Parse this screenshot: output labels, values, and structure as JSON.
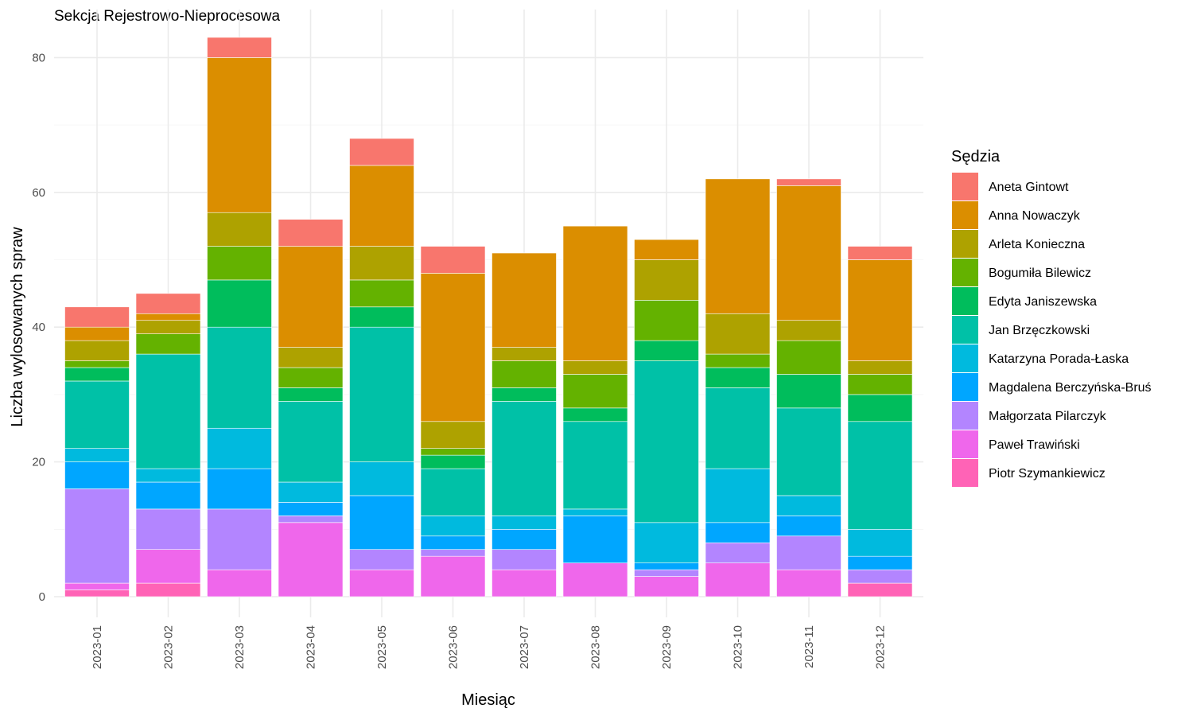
{
  "chart_data": {
    "type": "bar",
    "stacked": true,
    "title": "Sekcja Rejestrowo-Nieprocesowa",
    "xlabel": "Miesiąc",
    "ylabel": "Liczba wylosowanych spraw",
    "ylim": [
      0,
      85
    ],
    "yticks": [
      0,
      20,
      40,
      60,
      80
    ],
    "grid": true,
    "legend_title": "Sędzia",
    "legend_position": "right",
    "categories": [
      "2023-01",
      "2023-02",
      "2023-03",
      "2023-04",
      "2023-05",
      "2023-06",
      "2023-07",
      "2023-08",
      "2023-09",
      "2023-10",
      "2023-11",
      "2023-12"
    ],
    "series": [
      {
        "name": "Aneta Gintowt",
        "color": "#F8766D",
        "values": [
          3,
          3,
          3,
          4,
          4,
          4,
          0,
          0,
          0,
          0,
          1,
          2
        ]
      },
      {
        "name": "Anna Nowaczyk",
        "color": "#DB8E00",
        "values": [
          2,
          1,
          23,
          15,
          12,
          22,
          14,
          20,
          3,
          20,
          20,
          15
        ]
      },
      {
        "name": "Arleta Konieczna",
        "color": "#AEA200",
        "values": [
          3,
          2,
          5,
          3,
          5,
          4,
          2,
          2,
          6,
          6,
          3,
          2
        ]
      },
      {
        "name": "Bogumiła Bilewicz",
        "color": "#64B200",
        "values": [
          1,
          3,
          5,
          3,
          4,
          1,
          4,
          5,
          6,
          2,
          5,
          3
        ]
      },
      {
        "name": "Edyta Janiszewska",
        "color": "#00BD5C",
        "values": [
          2,
          0,
          7,
          2,
          3,
          2,
          2,
          2,
          3,
          3,
          5,
          4
        ]
      },
      {
        "name": "Jan Brzęczkowski",
        "color": "#00C1A7",
        "values": [
          10,
          17,
          15,
          12,
          20,
          7,
          17,
          13,
          24,
          12,
          13,
          16
        ]
      },
      {
        "name": "Katarzyna Porada-Łaska",
        "color": "#00BADE",
        "values": [
          2,
          2,
          6,
          3,
          5,
          3,
          2,
          1,
          6,
          8,
          3,
          4
        ]
      },
      {
        "name": "Magdalena Berczyńska-Bruś",
        "color": "#00A6FF",
        "values": [
          4,
          4,
          6,
          2,
          8,
          2,
          3,
          7,
          1,
          3,
          3,
          2
        ]
      },
      {
        "name": "Małgorzata Pilarczyk",
        "color": "#B385FF",
        "values": [
          14,
          6,
          9,
          1,
          3,
          1,
          3,
          0,
          1,
          3,
          5,
          2
        ]
      },
      {
        "name": "Paweł Trawiński",
        "color": "#EF67EB",
        "values": [
          1,
          5,
          4,
          11,
          4,
          6,
          4,
          5,
          3,
          5,
          4,
          0
        ]
      },
      {
        "name": "Piotr Szymankiewicz",
        "color": "#FF63B6",
        "values": [
          1,
          2,
          0,
          0,
          0,
          0,
          0,
          0,
          0,
          0,
          0,
          2
        ]
      }
    ]
  }
}
